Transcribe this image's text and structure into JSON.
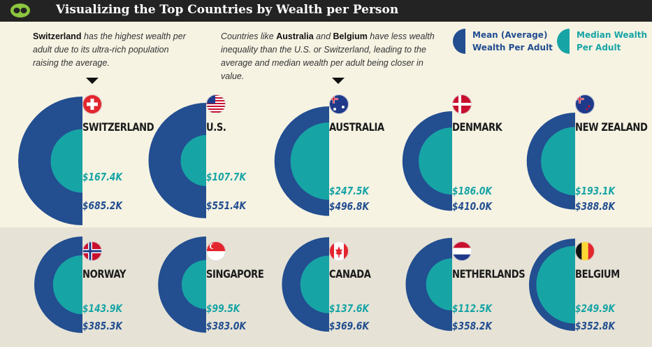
{
  "header": {
    "title": "Visualizing the Top Countries by Wealth per Person"
  },
  "notes": {
    "left_bold": "Switzerland",
    "left_rest": " has the highest wealth per adult due to its ultra-rich population raising the average.",
    "mid_pre": "Countries like ",
    "mid_b1": "Australia",
    "mid_and": " and ",
    "mid_b2": "Belgium",
    "mid_post": " have less wealth inequality than the U.S. or Switzerland, leading to the average and median wealth per adult being closer in value."
  },
  "legend": {
    "mean_label": "Mean (Average)\nWealth Per Adult",
    "median_label": "Median Wealth\nPer Adult"
  },
  "colors": {
    "mean": "#234e90",
    "median": "#17a4a5",
    "header_bg": "#232323",
    "bg_top": "#f6f3e3",
    "bg_bottom": "#e6e3d6"
  },
  "chart_data": {
    "type": "pie",
    "units": "USD thousands",
    "series": [
      {
        "name": "Mean (Average) Wealth Per Adult"
      },
      {
        "name": "Median Wealth Per Adult"
      }
    ],
    "countries": [
      {
        "name": "SWITZERLAND",
        "flag": "switzerland",
        "median": 167.4,
        "mean": 685.2,
        "median_label": "$167.4K",
        "mean_label": "$685.2K"
      },
      {
        "name": "U.S.",
        "flag": "usa",
        "median": 107.7,
        "mean": 551.4,
        "median_label": "$107.7K",
        "mean_label": "$551.4K"
      },
      {
        "name": "AUSTRALIA",
        "flag": "australia",
        "median": 247.5,
        "mean": 496.8,
        "median_label": "$247.5K",
        "mean_label": "$496.8K"
      },
      {
        "name": "DENMARK",
        "flag": "denmark",
        "median": 186.0,
        "mean": 410.0,
        "median_label": "$186.0K",
        "mean_label": "$410.0K"
      },
      {
        "name": "NEW ZEALAND",
        "flag": "new-zealand",
        "median": 193.1,
        "mean": 388.8,
        "median_label": "$193.1K",
        "mean_label": "$388.8K"
      },
      {
        "name": "NORWAY",
        "flag": "norway",
        "median": 143.9,
        "mean": 385.3,
        "median_label": "$143.9K",
        "mean_label": "$385.3K"
      },
      {
        "name": "SINGAPORE",
        "flag": "singapore",
        "median": 99.5,
        "mean": 383.0,
        "median_label": "$99.5K",
        "mean_label": "$383.0K"
      },
      {
        "name": "CANADA",
        "flag": "canada",
        "median": 137.6,
        "mean": 369.6,
        "median_label": "$137.6K",
        "mean_label": "$369.6K"
      },
      {
        "name": "NETHERLANDS",
        "flag": "netherlands",
        "median": 112.5,
        "mean": 358.2,
        "median_label": "$112.5K",
        "mean_label": "$358.2K"
      },
      {
        "name": "BELGIUM",
        "flag": "belgium",
        "median": 249.9,
        "mean": 352.8,
        "median_label": "$249.9K",
        "mean_label": "$352.8K"
      }
    ]
  }
}
